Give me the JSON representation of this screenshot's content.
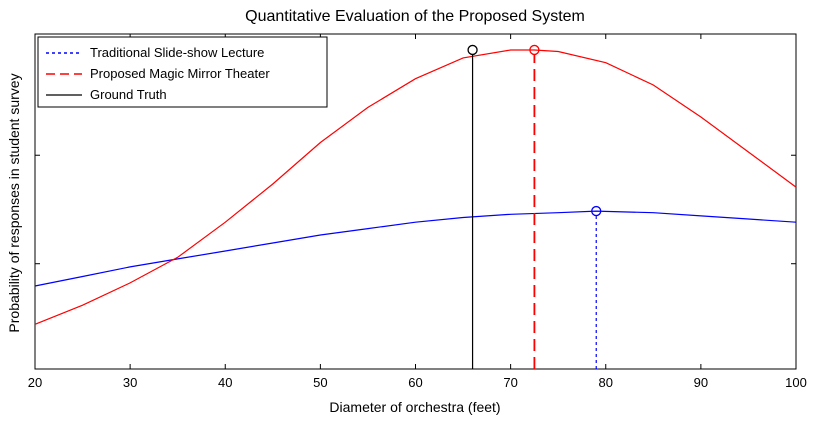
{
  "chart_data": {
    "type": "line",
    "title": "Quantitative Evaluation of the Proposed System",
    "xlabel": "Diameter of orchestra (feet)",
    "ylabel": "Probability of responses in student survey",
    "xlim": [
      20,
      100
    ],
    "ylim": [
      0,
      1
    ],
    "xticks": [
      20,
      30,
      40,
      50,
      60,
      70,
      80,
      90,
      100
    ],
    "yticks": [
      0.33,
      0.67
    ],
    "grid": false,
    "legend_position": "top-left",
    "series": [
      {
        "name": "Traditional Slide-show Lecture",
        "color": "#0000ff",
        "marker_line_style": "dotted",
        "x": [
          20,
          25,
          30,
          35,
          40,
          45,
          50,
          55,
          60,
          65,
          70,
          75,
          79,
          85,
          90,
          95,
          100
        ],
        "y": [
          0.26,
          0.29,
          0.32,
          0.345,
          0.37,
          0.395,
          0.42,
          0.44,
          0.46,
          0.475,
          0.485,
          0.49,
          0.495,
          0.49,
          0.48,
          0.47,
          0.46
        ],
        "peak": {
          "x": 79,
          "y": 0.495
        }
      },
      {
        "name": "Proposed Magic Mirror Theater",
        "color": "#ff0000",
        "marker_line_style": "dashed",
        "x": [
          20,
          25,
          30,
          35,
          40,
          45,
          50,
          55,
          60,
          65,
          70,
          72.5,
          75,
          80,
          85,
          90,
          95,
          100
        ],
        "y": [
          0.14,
          0.2,
          0.27,
          0.35,
          0.46,
          0.58,
          0.71,
          0.82,
          0.91,
          0.975,
          1.0,
          1.0,
          0.995,
          0.96,
          0.89,
          0.79,
          0.68,
          0.57
        ],
        "peak": {
          "x": 72.5,
          "y": 1.0
        }
      },
      {
        "name": "Ground Truth",
        "color": "#000000",
        "marker_line_style": "solid",
        "x": [
          66
        ],
        "y": [
          1.0
        ],
        "peak": {
          "x": 66,
          "y": 1.0
        }
      }
    ]
  }
}
